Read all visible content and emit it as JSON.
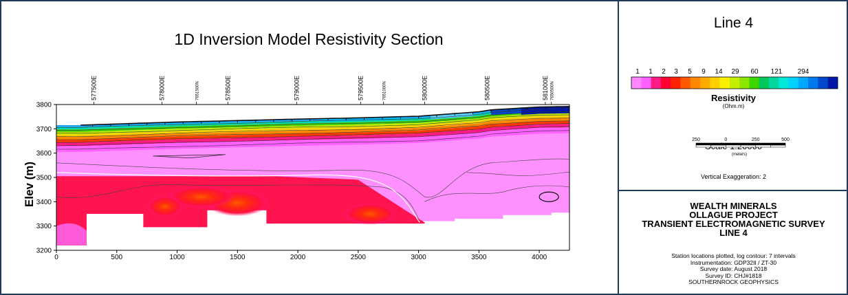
{
  "chart_data": {
    "type": "heatmap",
    "title": "1D Inversion Model Resistivity Section",
    "ylabel": "Elev (m)",
    "xlabel": "",
    "xlim": [
      0,
      4250
    ],
    "ylim": [
      3200,
      3800
    ],
    "x_ticks": [
      0,
      500,
      1000,
      1500,
      2000,
      2500,
      3000,
      3500,
      4000
    ],
    "y_ticks": [
      3200,
      3300,
      3400,
      3500,
      3600,
      3700,
      3800
    ],
    "station_labels": [
      {
        "label": "577500E",
        "x": 310
      },
      {
        "label": "578000E",
        "x": 875
      },
      {
        "label": "7651500N",
        "x": 1160
      },
      {
        "label": "578500E",
        "x": 1420
      },
      {
        "label": "579000E",
        "x": 1990
      },
      {
        "label": "579500E",
        "x": 2520
      },
      {
        "label": "7651000N",
        "x": 2710
      },
      {
        "label": "580000E",
        "x": 3050
      },
      {
        "label": "580500E",
        "x": 3570
      },
      {
        "label": "581000E",
        "x": 4050
      },
      {
        "label": "7650500N",
        "x": 4100
      }
    ],
    "surface_profile": {
      "x": [
        0,
        200,
        500,
        1000,
        1500,
        2000,
        2500,
        3000,
        3500,
        3600,
        4000,
        4250
      ],
      "elev": [
        3715,
        3715,
        3720,
        3728,
        3734,
        3740,
        3745,
        3752,
        3770,
        3778,
        3790,
        3792
      ]
    },
    "layer_depths_m": {
      "conductive_top": 110,
      "resistive_top_layer_thickness": 30
    },
    "colorbar": {
      "title": "Resistivity",
      "units": "(Ohm.m)",
      "labels": [
        "1",
        "1",
        "2",
        "3",
        "5",
        "9",
        "14",
        "29",
        "60",
        "121",
        "294"
      ],
      "colors": [
        "#ff88ff",
        "#ff60ff",
        "#ff1b86",
        "#ff0033",
        "#ff2200",
        "#ff5a00",
        "#ff8800",
        "#ffaa00",
        "#ffd000",
        "#f8f000",
        "#c6ee00",
        "#8ee600",
        "#3fd600",
        "#00c85a",
        "#00d7a0",
        "#00e8d8",
        "#00d2ff",
        "#00a8ff",
        "#0078ee",
        "#0048cc",
        "#0018a8"
      ]
    },
    "scale": {
      "label": "Scale 1:20000",
      "ticks": [
        "250",
        "0",
        "250",
        "500"
      ],
      "units": "(meters)"
    },
    "vertical_exaggeration": "Vertical Exaggeration: 2",
    "legend_placement": "right"
  },
  "line_title": "Line 4",
  "title_block": {
    "company_lines": [
      "WEALTH MINERALS",
      "OLLAGUE PROJECT",
      "TRANSIENT ELECTROMAGNETIC SURVEY",
      "LINE 4"
    ],
    "notes": [
      "Station locations plotted, log contour: 7 intervals",
      "Instrumentation: GDP32II / ZT-30",
      "Survey date: August 2018",
      "Survey ID: CHJ#1818",
      "SOUTHERNROCK GEOPHYSICS"
    ]
  },
  "colors": {
    "frame": "#1f3a5a",
    "low_resistivity": "#ff88ff",
    "mid_conductive": "#ff1450",
    "high_resistivity": "#0018a8"
  }
}
